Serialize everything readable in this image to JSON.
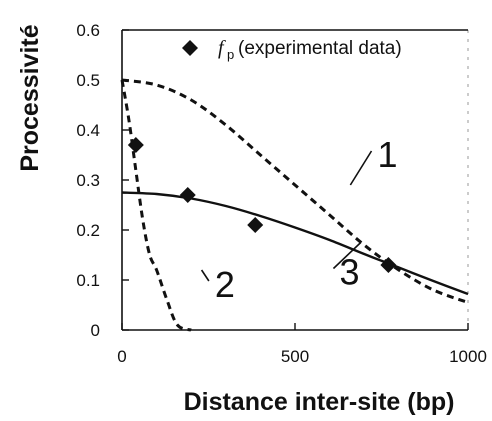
{
  "chart_data": {
    "type": "scatter",
    "xlabel": "Distance inter-site (bp)",
    "ylabel": "Processivité",
    "xlim": [
      0,
      1000
    ],
    "ylim": [
      0,
      0.6
    ],
    "xticks": [
      "0",
      "500",
      "1000"
    ],
    "yticks": [
      "0",
      "0.1",
      "0.2",
      "0.3",
      "0.4",
      "0.5",
      "0.6"
    ],
    "grid": false,
    "legend": {
      "position": "top-right",
      "symbol": "f",
      "symbol_subscript": "p",
      "text": "(experimental data)"
    },
    "series": [
      {
        "name": "fp (experimental data)",
        "marker": "diamond",
        "x": [
          40,
          190,
          385,
          770
        ],
        "y": [
          0.37,
          0.27,
          0.21,
          0.13
        ]
      },
      {
        "name": "1",
        "style": "dashed",
        "x": [
          0,
          100,
          200,
          300,
          400,
          500,
          600,
          700,
          800,
          900,
          1000
        ],
        "y": [
          0.5,
          0.49,
          0.46,
          0.41,
          0.35,
          0.29,
          0.23,
          0.17,
          0.12,
          0.08,
          0.055
        ]
      },
      {
        "name": "2",
        "style": "dashed",
        "x": [
          0,
          20,
          40,
          60,
          80,
          100,
          130,
          160,
          200
        ],
        "y": [
          0.5,
          0.42,
          0.32,
          0.22,
          0.15,
          0.12,
          0.06,
          0.01,
          0.0
        ]
      },
      {
        "name": "3",
        "style": "solid",
        "x": [
          0,
          100,
          200,
          300,
          400,
          500,
          600,
          700,
          800,
          900,
          1000
        ],
        "y": [
          0.275,
          0.272,
          0.263,
          0.248,
          0.228,
          0.205,
          0.18,
          0.152,
          0.125,
          0.098,
          0.072
        ]
      }
    ],
    "annotations": [
      {
        "text": "1",
        "x": 750,
        "y": 0.35,
        "arrow_to": [
          660,
          0.29
        ]
      },
      {
        "text": "2",
        "x": 280,
        "y": 0.09,
        "arrow_to": [
          230,
          0.12
        ]
      },
      {
        "text": "3",
        "x": 640,
        "y": 0.115,
        "arrow_to": [
          690,
          0.175
        ]
      }
    ]
  }
}
